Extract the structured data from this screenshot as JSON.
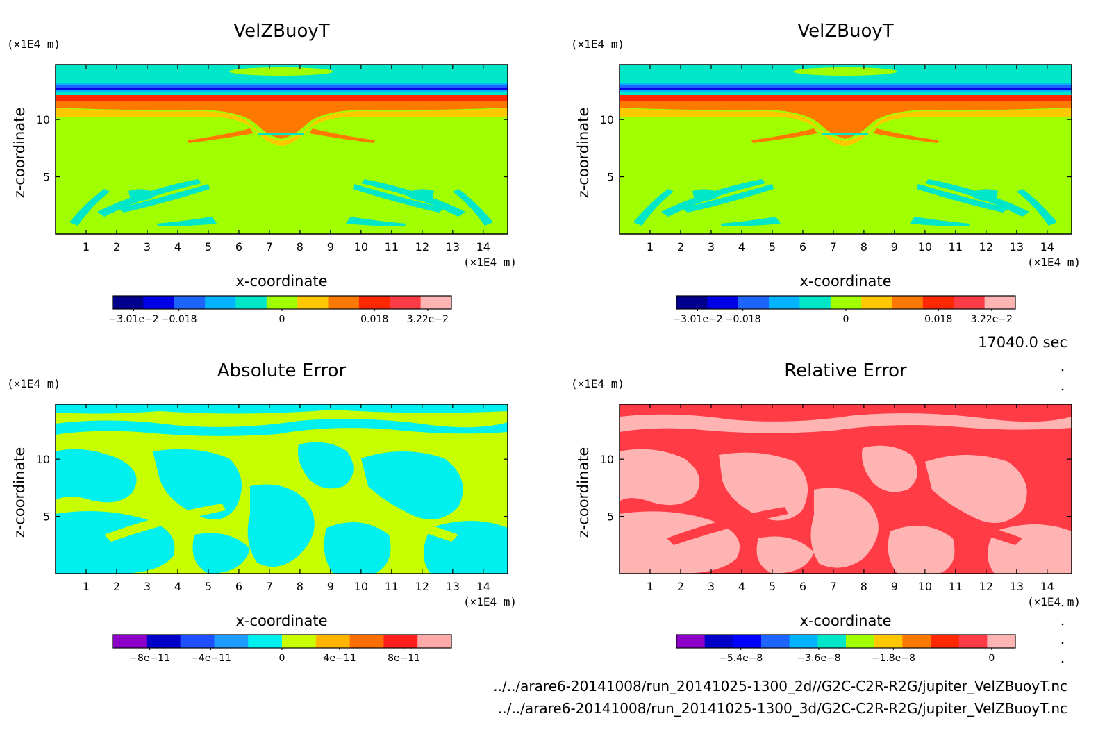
{
  "time_label": "17040.0 sec",
  "footer": {
    "file1": "../../arare6-20141008/run_20141025-1300_2d//G2C-C2R-R2G/jupiter_VelZBuoyT.nc",
    "file2": "../../arare6-20141008/run_20141025-1300_3d/G2C-C2R-R2G/jupiter_VelZBuoyT.nc"
  },
  "chart_data": [
    {
      "type": "heatmap",
      "title": "VelZBuoyT",
      "xlabel": "x-coordinate",
      "ylabel": "z-coordinate",
      "x_unit": "(×1E4 m)",
      "y_unit": "(×1E4 m)",
      "x_ticks": [
        1,
        2,
        3,
        4,
        5,
        6,
        7,
        8,
        9,
        10,
        11,
        12,
        13,
        14
      ],
      "y_ticks": [
        5,
        10
      ],
      "xlim": [
        0,
        14.8
      ],
      "ylim": [
        0,
        14.8
      ],
      "colorbar": {
        "colors": [
          "#00008c",
          "#0000e6",
          "#1e64ff",
          "#00b4ff",
          "#00e6c8",
          "#a0ff00",
          "#ffc800",
          "#ff7800",
          "#ff2800",
          "#ff3c46",
          "#ffb4b4"
        ],
        "labels": [
          "−3.01e−2",
          "−0.018",
          "0",
          "0.018",
          "3.22e−2"
        ]
      }
    },
    {
      "type": "heatmap",
      "title": "VelZBuoyT",
      "xlabel": "x-coordinate",
      "ylabel": "z-coordinate",
      "x_unit": "(×1E4 m)",
      "y_unit": "(×1E4 m)",
      "x_ticks": [
        1,
        2,
        3,
        4,
        5,
        6,
        7,
        8,
        9,
        10,
        11,
        12,
        13,
        14
      ],
      "y_ticks": [
        5,
        10
      ],
      "xlim": [
        0,
        14.8
      ],
      "ylim": [
        0,
        14.8
      ],
      "colorbar": {
        "colors": [
          "#00008c",
          "#0000e6",
          "#1e64ff",
          "#00b4ff",
          "#00e6c8",
          "#a0ff00",
          "#ffc800",
          "#ff7800",
          "#ff2800",
          "#ff3c46",
          "#ffb4b4"
        ],
        "labels": [
          "−3.01e−2",
          "−0.018",
          "0",
          "0.018",
          "3.22e−2"
        ]
      }
    },
    {
      "type": "heatmap",
      "title": "Absolute Error",
      "xlabel": "x-coordinate",
      "ylabel": "z-coordinate",
      "x_unit": "(×1E4 m)",
      "y_unit": "(×1E4 m)",
      "x_ticks": [
        1,
        2,
        3,
        4,
        5,
        6,
        7,
        8,
        9,
        10,
        11,
        12,
        13,
        14
      ],
      "y_ticks": [
        5,
        10
      ],
      "xlim": [
        0,
        14.8
      ],
      "ylim": [
        0,
        14.8
      ],
      "colorbar": {
        "colors": [
          "#8c00c8",
          "#0000c8",
          "#1e50ff",
          "#1e9bff",
          "#00f0f0",
          "#c8ff00",
          "#ffb400",
          "#ff6e00",
          "#ff1e1e",
          "#ffaaaa"
        ],
        "labels": [
          "−8e−11",
          "−4e−11",
          "0",
          "4e−11",
          "8e−11"
        ]
      }
    },
    {
      "type": "heatmap",
      "title": "Relative Error",
      "xlabel": "x-coordinate",
      "ylabel": "z-coordinate",
      "x_unit": "(×1E4 m)",
      "y_unit": "(×1E4 m)",
      "x_ticks": [
        1,
        2,
        3,
        4,
        5,
        6,
        7,
        8,
        9,
        10,
        11,
        12,
        13,
        14
      ],
      "y_ticks": [
        5,
        10
      ],
      "xlim": [
        0,
        14.8
      ],
      "ylim": [
        0,
        14.8
      ],
      "colorbar": {
        "colors": [
          "#8c00c8",
          "#0000c8",
          "#0000ff",
          "#1e64ff",
          "#00b4ff",
          "#00e6c8",
          "#a0ff00",
          "#ffc800",
          "#ff7800",
          "#ff2800",
          "#ff3c46",
          "#ffb4b4"
        ],
        "labels": [
          "−5.4e−8",
          "−3.6e−8",
          "−1.8e−8",
          "0"
        ]
      }
    }
  ]
}
